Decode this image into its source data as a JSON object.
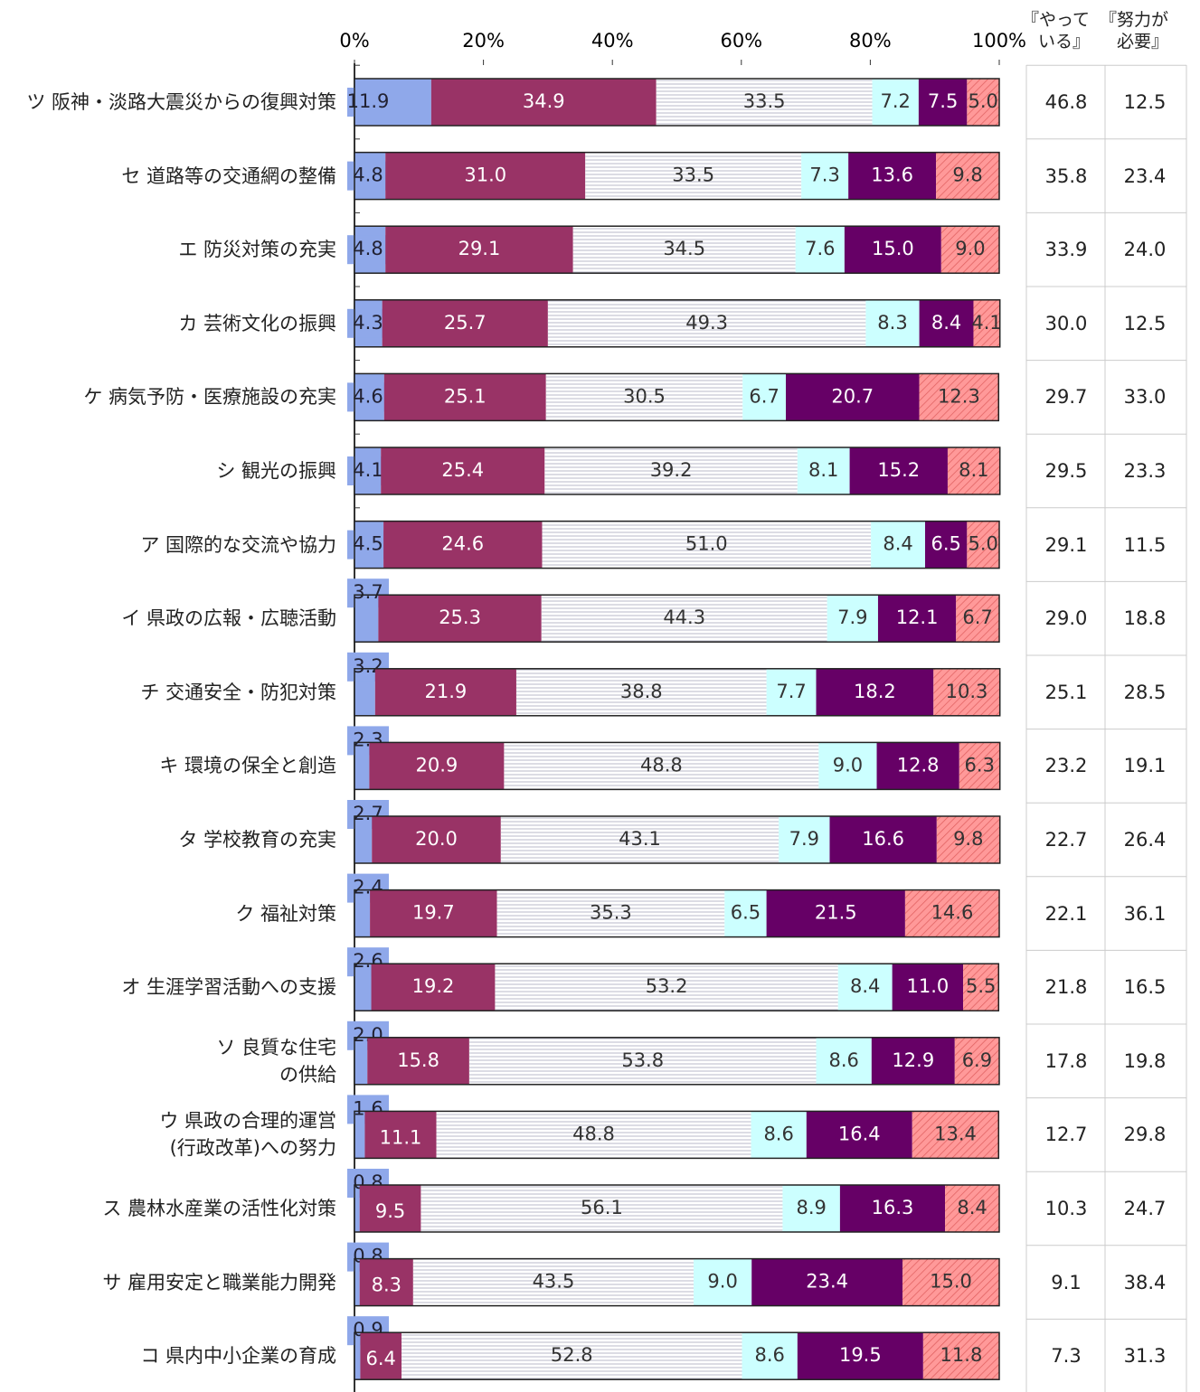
{
  "chart_data": {
    "type": "stacked_barh",
    "categories": [
      "ツ 阪神・淡路大震災からの復興対策",
      "セ 道路等の交通網の整備",
      "エ 防災対策の充実",
      "カ 芸術文化の振興",
      "ケ 病気予防・医療施設の充実",
      "シ 観光の振興",
      "ア 国際的な交流や協力",
      "イ 県政の広報・広聴活動",
      "チ 交通安全・防犯対策",
      "キ 環境の保全と創造",
      "タ 学校教育の充実",
      "ク 福祉対策",
      "オ 生涯学習活動への支援",
      "ソ 良質な住宅\nの供給",
      "ウ 県政の合理的運営\n(行政改革)への努力",
      "ス 農林水産業の活性化対策",
      "サ 雇用安定と職業能力開発",
      "コ 県内中小企業の育成"
    ],
    "xlim": [
      0,
      100
    ],
    "xticks": [
      {
        "value": 0,
        "label": "0%"
      },
      {
        "value": 20,
        "label": "20%"
      },
      {
        "value": 40,
        "label": "40%"
      },
      {
        "value": 60,
        "label": "60%"
      },
      {
        "value": 80,
        "label": "80%"
      },
      {
        "value": 100,
        "label": "100%"
      }
    ],
    "series": [
      {
        "color": "#8fa8ea",
        "values": [
          11.9,
          4.8,
          4.8,
          4.3,
          4.6,
          4.1,
          4.5,
          3.7,
          3.2,
          2.3,
          2.7,
          2.4,
          2.6,
          2.0,
          1.6,
          0.8,
          0.8,
          0.9
        ],
        "value_labels": [
          "11.9",
          "4.8",
          "4.8",
          "4.3",
          "4.6",
          "4.1",
          "4.5",
          "3.7",
          "3.2",
          "2.3",
          "2.7",
          "2.4",
          "2.6",
          "2.0",
          "1.6",
          "0.8",
          "0.8",
          "0.9"
        ]
      },
      {
        "color": "#993366",
        "values": [
          34.9,
          31.0,
          29.1,
          25.7,
          25.1,
          25.4,
          24.6,
          25.3,
          21.9,
          20.9,
          20.0,
          19.7,
          19.2,
          15.8,
          11.1,
          9.5,
          8.3,
          6.4
        ],
        "value_labels": [
          "34.9",
          "31.0",
          "29.1",
          "25.7",
          "25.1",
          "25.4",
          "24.6",
          "25.3",
          "21.9",
          "20.9",
          "20.0",
          "19.7",
          "19.2",
          "15.8",
          "11.1",
          "9.5",
          "8.3",
          "6.4"
        ]
      },
      {
        "color": "#ffffff",
        "hatch": "horizontal",
        "values": [
          33.5,
          33.5,
          34.5,
          49.3,
          30.5,
          39.2,
          51.0,
          44.3,
          38.8,
          48.8,
          43.1,
          35.3,
          53.2,
          53.8,
          48.8,
          56.1,
          43.5,
          52.8
        ],
        "value_labels": [
          "33.5",
          "33.5",
          "34.5",
          "49.3",
          "30.5",
          "39.2",
          "51.0",
          "44.3",
          "38.8",
          "48.8",
          "43.1",
          "35.3",
          "53.2",
          "53.8",
          "48.8",
          "56.1",
          "43.5",
          "52.8"
        ]
      },
      {
        "color": "#ccffff",
        "values": [
          7.2,
          7.3,
          7.6,
          8.3,
          6.7,
          8.1,
          8.4,
          7.9,
          7.7,
          9.0,
          7.9,
          6.5,
          8.4,
          8.6,
          8.6,
          8.9,
          9.0,
          8.6
        ],
        "value_labels": [
          "7.2",
          "7.3",
          "7.6",
          "8.3",
          "6.7",
          "8.1",
          "8.4",
          "7.9",
          "7.7",
          "9.0",
          "7.9",
          "6.5",
          "8.4",
          "8.6",
          "8.6",
          "8.9",
          "9.0",
          "8.6"
        ]
      },
      {
        "color": "#660066",
        "values": [
          7.5,
          13.6,
          15.0,
          8.4,
          20.7,
          15.2,
          6.5,
          12.1,
          18.2,
          12.8,
          16.6,
          21.5,
          11.0,
          12.9,
          16.4,
          16.3,
          23.4,
          19.5
        ],
        "value_labels": [
          "7.5",
          "13.6",
          "15.0",
          "8.4",
          "20.7",
          "15.2",
          "6.5",
          "12.1",
          "18.2",
          "12.8",
          "16.6",
          "21.5",
          "11.0",
          "12.9",
          "16.4",
          "16.3",
          "23.4",
          "19.5"
        ]
      },
      {
        "color": "#ff9999",
        "hatch": "diagonal",
        "values": [
          5.0,
          9.8,
          9.0,
          4.1,
          12.3,
          8.1,
          5.0,
          6.7,
          10.3,
          6.3,
          9.8,
          14.6,
          5.5,
          6.9,
          13.4,
          8.4,
          15.0,
          11.8
        ],
        "value_labels": [
          "5.0",
          "9.8",
          "9.0",
          "4.1",
          "12.3",
          "8.1",
          "5.0",
          "6.7",
          "10.3",
          "6.3",
          "9.8",
          "14.6",
          "5.5",
          "6.9",
          "13.4",
          "8.4",
          "15.0",
          "11.8"
        ]
      }
    ]
  },
  "table": {
    "headers": [
      "『やって\nいる』",
      "『努力が\n必要』"
    ],
    "rows": [
      [
        "46.8",
        "12.5"
      ],
      [
        "35.8",
        "23.4"
      ],
      [
        "33.9",
        "24.0"
      ],
      [
        "30.0",
        "12.5"
      ],
      [
        "29.7",
        "33.0"
      ],
      [
        "29.5",
        "23.3"
      ],
      [
        "29.1",
        "11.5"
      ],
      [
        "29.0",
        "18.8"
      ],
      [
        "25.1",
        "28.5"
      ],
      [
        "23.2",
        "19.1"
      ],
      [
        "22.7",
        "26.4"
      ],
      [
        "22.1",
        "36.1"
      ],
      [
        "21.8",
        "16.5"
      ],
      [
        "17.8",
        "19.8"
      ],
      [
        "12.7",
        "29.8"
      ],
      [
        "10.3",
        "24.7"
      ],
      [
        "9.1",
        "38.4"
      ],
      [
        "7.3",
        "31.3"
      ]
    ]
  }
}
